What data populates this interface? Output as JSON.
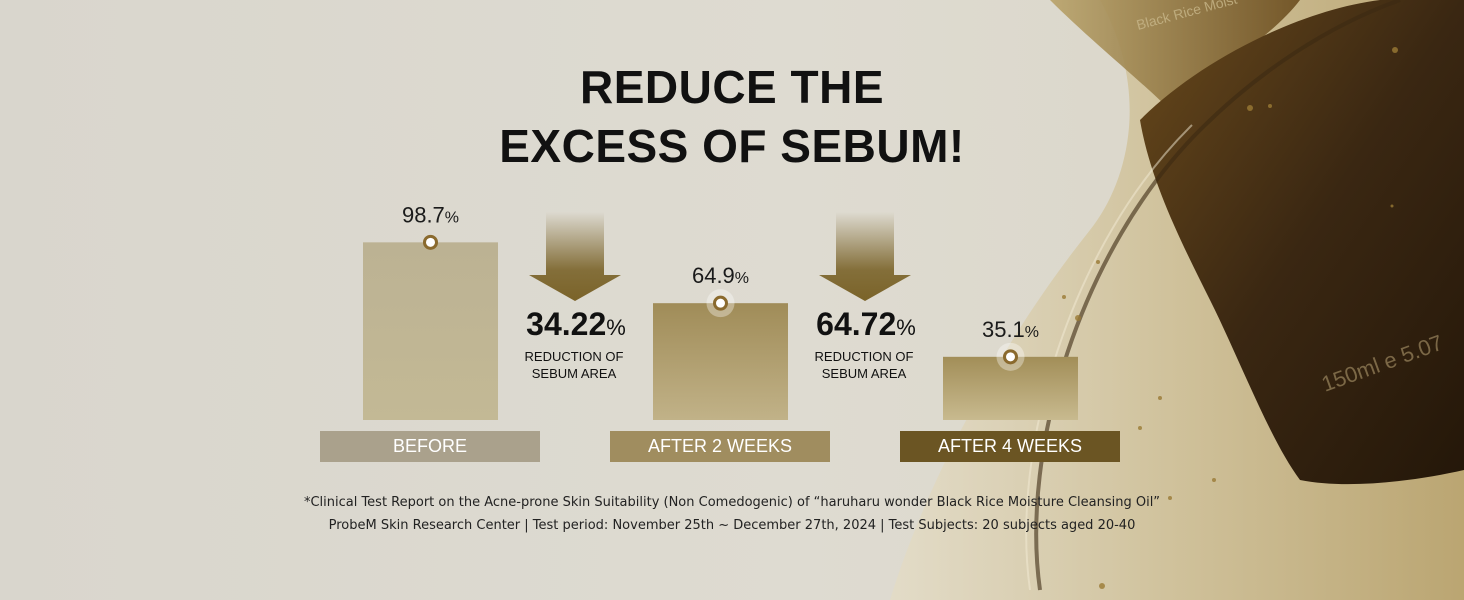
{
  "title_line1": "REDUCE THE",
  "title_line2": "EXCESS OF SEBUM!",
  "bottle": {
    "label_top": "Black Rice Moist",
    "volume": "150ml",
    "volume_oz": "e 5.07"
  },
  "chart_data": {
    "type": "bar",
    "categories": [
      "BEFORE",
      "AFTER 2 WEEKS",
      "AFTER 4 WEEKS"
    ],
    "values": [
      98.7,
      64.9,
      35.1
    ],
    "value_labels": [
      "98.7",
      "64.9",
      "35.1"
    ],
    "unit": "%",
    "reductions": [
      {
        "value": "34.22",
        "unit": "%",
        "line1": "REDUCTION OF",
        "line2": "SEBUM AREA"
      },
      {
        "value": "64.72",
        "unit": "%",
        "line1": "REDUCTION OF",
        "line2": "SEBUM AREA"
      }
    ],
    "colors": {
      "bars": [
        [
          "#bcb293",
          "#c3b995"
        ],
        [
          "#a08c58",
          "#c1b288"
        ],
        [
          "#a28e58",
          "#c8ba8f"
        ]
      ],
      "labels": [
        "#aaa18c",
        "#a08d5f",
        "#6b5523"
      ],
      "arrow": "#7a6329",
      "marker": "#8a6a2e"
    }
  },
  "footnote_line1": "*Clinical Test Report on the Acne-prone Skin Suitability (Non Comedogenic) of “haruharu wonder Black Rice Moisture Cleansing Oil”",
  "footnote_line2": "ProbeM Skin Research Center | Test period: November 25th ~ December 27th, 2024 | Test Subjects: 20 subjects aged 20-40"
}
